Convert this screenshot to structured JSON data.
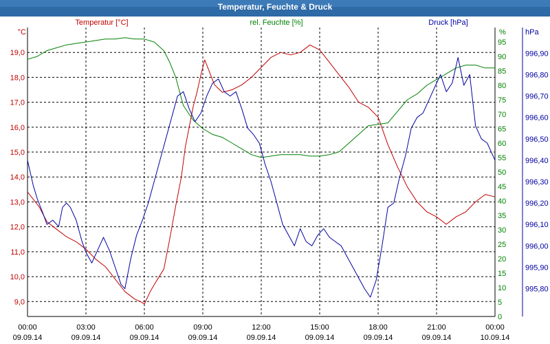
{
  "chart_data": {
    "type": "line",
    "title": "Temperatur, Feuchte & Druck",
    "colors": {
      "title_bar": "#2d6aa6",
      "temperature": "#c00000",
      "humidity": "#008000",
      "pressure": "#0000a0",
      "grid": "#000000",
      "axis": "#000000"
    },
    "x_ticks": [
      {
        "time": "00:00",
        "date": "09.09.14"
      },
      {
        "time": "03:00",
        "date": "09.09.14"
      },
      {
        "time": "06:00",
        "date": "09.09.14"
      },
      {
        "time": "09:00",
        "date": "09.09.14"
      },
      {
        "time": "12:00",
        "date": "09.09.14"
      },
      {
        "time": "15:00",
        "date": "09.09.14"
      },
      {
        "time": "18:00",
        "date": "09.09.14"
      },
      {
        "time": "21:00",
        "date": "09.09.14"
      },
      {
        "time": "00:00",
        "date": "10.09.14"
      }
    ],
    "xlim": [
      0,
      24
    ],
    "axes": {
      "temperature": {
        "label": "Temperatur [°C]",
        "unit": "°C",
        "ylim": [
          8.4,
          20.0
        ],
        "ticks": [
          "9,0",
          "10,0",
          "11,0",
          "12,0",
          "13,0",
          "14,0",
          "15,0",
          "16,0",
          "17,0",
          "18,0",
          "19,0"
        ],
        "tick_values": [
          9,
          10,
          11,
          12,
          13,
          14,
          15,
          16,
          17,
          18,
          19
        ]
      },
      "humidity": {
        "label": "rel. Feuchte [%]",
        "unit": "%",
        "ylim": [
          0,
          100
        ],
        "ticks": [
          "0",
          "5",
          "10",
          "15",
          "20",
          "25",
          "30",
          "35",
          "40",
          "45",
          "50",
          "55",
          "60",
          "65",
          "70",
          "75",
          "80",
          "85",
          "90",
          "95"
        ],
        "tick_values": [
          0,
          5,
          10,
          15,
          20,
          25,
          30,
          35,
          40,
          45,
          50,
          55,
          60,
          65,
          70,
          75,
          80,
          85,
          90,
          95
        ]
      },
      "pressure": {
        "label": "Druck [hPa]",
        "unit": "hPa",
        "ylim": [
          995.67,
          997.02
        ],
        "ticks": [
          "995,80",
          "995,90",
          "996,00",
          "996,10",
          "996,20",
          "996,30",
          "996,40",
          "996,50",
          "996,60",
          "996,70",
          "996,80",
          "996,90"
        ],
        "tick_values": [
          995.8,
          995.9,
          996.0,
          996.1,
          996.2,
          996.3,
          996.4,
          996.5,
          996.6,
          996.7,
          996.8,
          996.9
        ]
      }
    },
    "grid": true,
    "series": [
      {
        "name": "Temperatur",
        "axis": "temperature",
        "x": [
          0,
          0.3,
          0.6,
          1,
          1.5,
          2,
          2.5,
          3,
          3.5,
          4,
          4.5,
          5,
          5.5,
          5.8,
          6,
          6.3,
          6.6,
          7,
          7.3,
          7.6,
          7.9,
          8.1,
          8.3,
          8.5,
          8.7,
          8.9,
          9.1,
          9.3,
          9.6,
          10,
          10.5,
          11,
          11.5,
          12,
          12.5,
          13,
          13.5,
          14,
          14.5,
          15,
          15.5,
          16,
          16.5,
          17,
          17.5,
          18,
          18.5,
          19,
          19.5,
          20,
          20.5,
          21,
          21.5,
          22,
          22.5,
          23,
          23.5,
          24
        ],
        "y": [
          13.4,
          13.1,
          12.8,
          12.2,
          11.9,
          11.6,
          11.4,
          11.1,
          10.7,
          10.4,
          9.9,
          9.4,
          9.1,
          9.0,
          8.9,
          9.4,
          9.8,
          10.3,
          11.5,
          12.8,
          14.0,
          15.2,
          16.0,
          16.8,
          17.4,
          18.1,
          18.7,
          18.3,
          17.7,
          17.4,
          17.5,
          17.7,
          18.0,
          18.4,
          18.8,
          19.0,
          18.9,
          19.0,
          19.3,
          19.1,
          18.6,
          18.1,
          17.6,
          17.0,
          16.8,
          16.4,
          15.3,
          14.4,
          13.6,
          13.0,
          12.6,
          12.4,
          12.1,
          12.4,
          12.6,
          13.0,
          13.3,
          13.2
        ]
      },
      {
        "name": "rel. Feuchte",
        "axis": "humidity",
        "x": [
          0,
          0.5,
          1,
          1.5,
          2,
          2.5,
          3,
          3.5,
          4,
          4.5,
          5,
          5.5,
          6,
          6.5,
          7,
          7.3,
          7.6,
          8,
          8.5,
          9,
          9.5,
          10,
          10.5,
          11,
          11.5,
          12,
          12.5,
          13,
          13.5,
          14,
          14.5,
          15,
          15.5,
          16,
          16.5,
          17,
          17.5,
          18,
          18.5,
          19,
          19.5,
          20,
          20.5,
          21,
          21.5,
          22,
          22.5,
          23,
          23.5,
          24
        ],
        "y": [
          89,
          90,
          92,
          93,
          94,
          94.5,
          95,
          95.5,
          96,
          96,
          96.5,
          96,
          96,
          95,
          92,
          88,
          83,
          73,
          68,
          65,
          63,
          62,
          60,
          58,
          56,
          55,
          55.5,
          56,
          56,
          56,
          55.5,
          55.5,
          56,
          57,
          60,
          63,
          66,
          66.5,
          67,
          71,
          75,
          77,
          80,
          82,
          84,
          86,
          87,
          87,
          86,
          86
        ]
      },
      {
        "name": "Druck",
        "axis": "pressure",
        "x": [
          0,
          0.3,
          0.5,
          0.8,
          1,
          1.3,
          1.6,
          1.8,
          2,
          2.2,
          2.5,
          2.8,
          3,
          3.3,
          3.6,
          3.9,
          4.2,
          4.5,
          4.8,
          5,
          5.3,
          5.6,
          5.9,
          6.2,
          6.5,
          6.8,
          7.1,
          7.4,
          7.7,
          8,
          8.3,
          8.6,
          8.9,
          9.2,
          9.5,
          9.8,
          10.1,
          10.4,
          10.7,
          11,
          11.3,
          11.6,
          11.9,
          12.2,
          12.5,
          12.8,
          13.1,
          13.4,
          13.7,
          14,
          14.3,
          14.6,
          14.9,
          15.2,
          15.5,
          15.8,
          16.1,
          16.4,
          16.7,
          17,
          17.3,
          17.6,
          17.9,
          18.2,
          18.5,
          18.8,
          19.1,
          19.4,
          19.7,
          20,
          20.3,
          20.6,
          20.9,
          21.2,
          21.5,
          21.8,
          22.1,
          22.4,
          22.7,
          23,
          23.3,
          23.6,
          24
        ],
        "y": [
          996.4,
          996.28,
          996.22,
          996.15,
          996.1,
          996.12,
          996.09,
          996.18,
          996.2,
          996.18,
          996.12,
          996.02,
          995.97,
          995.92,
          995.98,
          996.04,
          995.98,
          995.9,
          995.82,
          995.8,
          995.94,
          996.05,
          996.12,
          996.2,
          996.3,
          996.4,
          996.5,
          996.6,
          996.7,
          996.72,
          996.64,
          996.58,
          996.62,
          996.7,
          996.76,
          996.78,
          996.72,
          996.7,
          996.72,
          996.64,
          996.55,
          996.52,
          996.48,
          996.38,
          996.3,
          996.2,
          996.1,
          996.05,
          996.0,
          996.08,
          996.02,
          996.0,
          996.05,
          996.08,
          996.04,
          996.02,
          996.0,
          995.95,
          995.9,
          995.85,
          995.8,
          995.76,
          995.84,
          996.0,
          996.18,
          996.2,
          996.32,
          996.42,
          996.55,
          996.6,
          996.62,
          996.68,
          996.74,
          996.8,
          996.72,
          996.76,
          996.88,
          996.75,
          996.8,
          996.56,
          996.5,
          996.48,
          996.4
        ]
      }
    ]
  }
}
